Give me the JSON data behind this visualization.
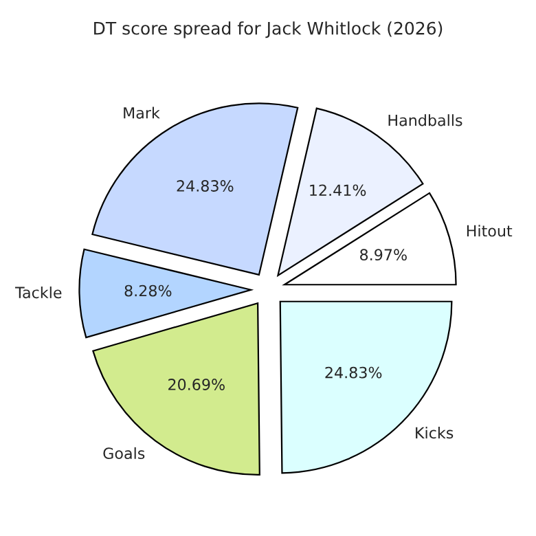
{
  "chart_data": {
    "type": "pie",
    "title": "DT score spread for Jack Whitlock (2026)",
    "categories": [
      "Hitout",
      "Handballs",
      "Mark",
      "Tackle",
      "Goals",
      "Kicks"
    ],
    "values": [
      8.97,
      12.41,
      24.83,
      8.28,
      20.69,
      24.83
    ],
    "value_labels": [
      "8.97%",
      "12.41%",
      "24.83%",
      "8.28%",
      "20.69%",
      "24.83%"
    ],
    "colors": [
      "#ffffff",
      "#ebf1ff",
      "#c6d9ff",
      "#b3d5ff",
      "#d2eb8e",
      "#dbffff"
    ]
  }
}
